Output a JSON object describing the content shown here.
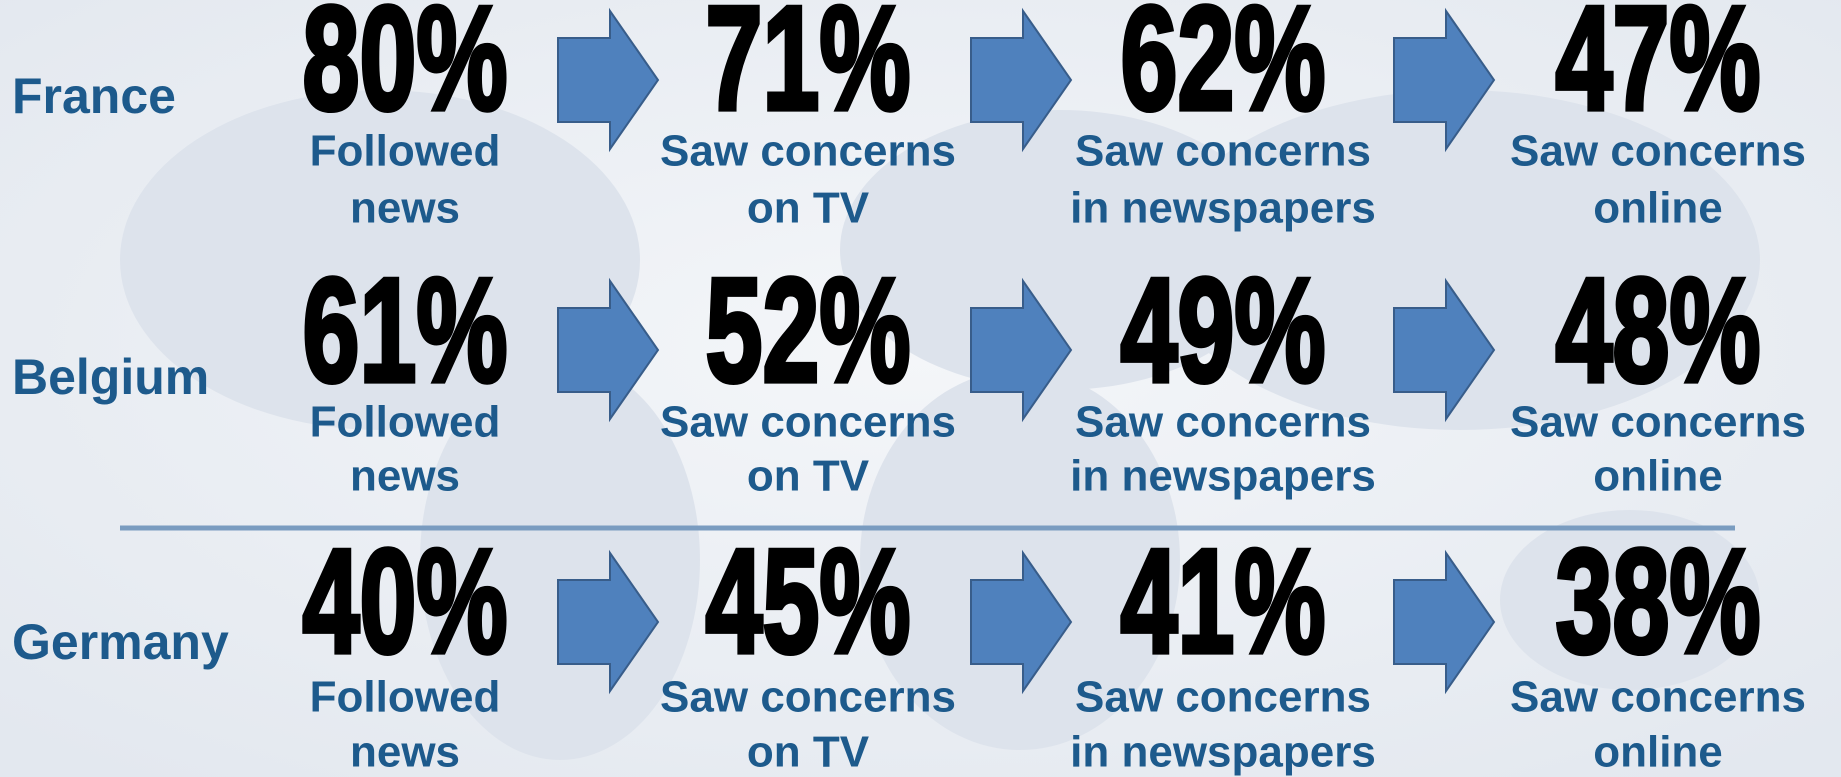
{
  "rows": [
    {
      "country": "France",
      "stages": [
        {
          "value": "80%",
          "label": [
            "Followed",
            "news"
          ]
        },
        {
          "value": "71%",
          "label": [
            "Saw concerns",
            "on TV"
          ]
        },
        {
          "value": "62%",
          "label": [
            "Saw concerns",
            "in newspapers"
          ]
        },
        {
          "value": "47%",
          "label": [
            "Saw concerns",
            "online"
          ]
        }
      ]
    },
    {
      "country": "Belgium",
      "stages": [
        {
          "value": "61%",
          "label": [
            "Followed",
            "news"
          ]
        },
        {
          "value": "52%",
          "label": [
            "Saw concerns",
            "on TV"
          ]
        },
        {
          "value": "49%",
          "label": [
            "Saw concerns",
            "in newspapers"
          ]
        },
        {
          "value": "48%",
          "label": [
            "Saw concerns",
            "online"
          ]
        }
      ]
    },
    {
      "country": "Germany",
      "stages": [
        {
          "value": "40%",
          "label": [
            "Followed",
            "news"
          ]
        },
        {
          "value": "45%",
          "label": [
            "Saw concerns",
            "on TV"
          ]
        },
        {
          "value": "41%",
          "label": [
            "Saw concerns",
            "in newspapers"
          ]
        },
        {
          "value": "38%",
          "label": [
            "Saw concerns",
            "online"
          ]
        }
      ]
    }
  ]
}
